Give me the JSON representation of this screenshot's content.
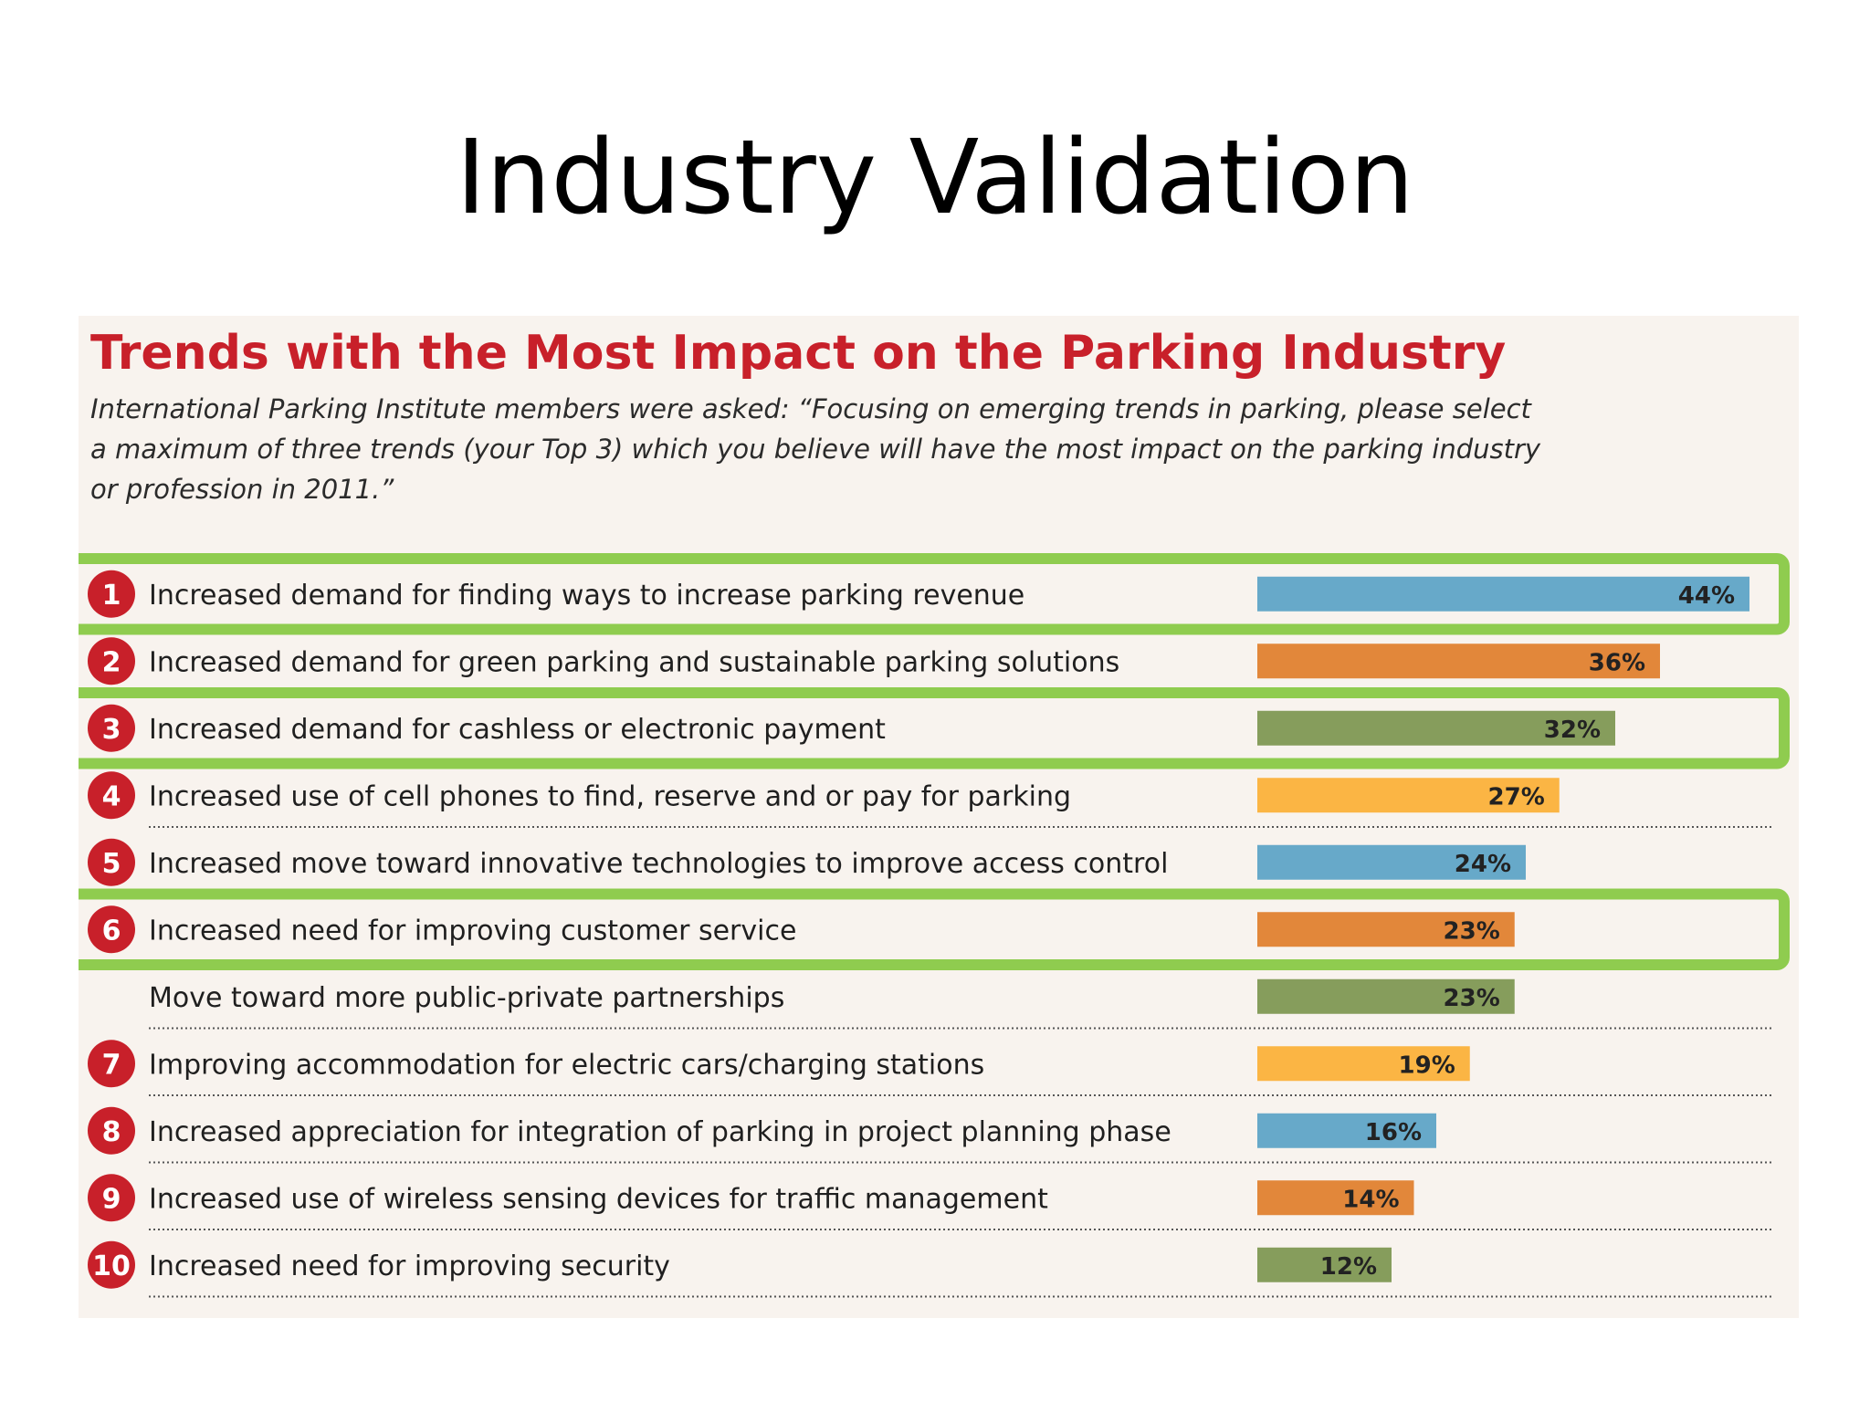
{
  "slide": {
    "title": "Industry Validation"
  },
  "highlight_color": "#8fcc4f",
  "chart_data": {
    "type": "bar",
    "orientation": "horizontal",
    "title": "Trends with the Most Impact on the Parking Industry",
    "subtitle": "International Parking Institute members were asked: “Focusing on emerging trends in parking, please select a maximum of three trends (your Top 3) which you believe will have the most impact on the parking industry or profession in 2011.”",
    "unit": "%",
    "xlim": [
      0,
      50
    ],
    "grid": false,
    "legend": "none",
    "items": [
      {
        "rank": "1",
        "label": "Increased demand for finding ways to increase parking revenue",
        "value": 44,
        "value_label": "44%",
        "color": "#67a9c9",
        "highlighted": true
      },
      {
        "rank": "2",
        "label": "Increased demand for green parking and sustainable parking solutions",
        "value": 36,
        "value_label": "36%",
        "color": "#e2873a",
        "highlighted": false
      },
      {
        "rank": "3",
        "label": "Increased demand for cashless or electronic payment",
        "value": 32,
        "value_label": "32%",
        "color": "#869d5c",
        "highlighted": true
      },
      {
        "rank": "4",
        "label": "Increased use of cell phones to find, reserve and or pay for parking",
        "value": 27,
        "value_label": "27%",
        "color": "#fbb544",
        "highlighted": false
      },
      {
        "rank": "5",
        "label": "Increased move toward innovative technologies to improve access control",
        "value": 24,
        "value_label": "24%",
        "color": "#67a9c9",
        "highlighted": false
      },
      {
        "rank": "6",
        "label": "Increased need for improving customer service",
        "value": 23,
        "value_label": "23%",
        "color": "#e2873a",
        "highlighted": true
      },
      {
        "rank": "",
        "label": "Move toward more public-private partnerships",
        "value": 23,
        "value_label": "23%",
        "color": "#869d5c",
        "highlighted": false
      },
      {
        "rank": "7",
        "label": "Improving accommodation for electric cars/charging stations",
        "value": 19,
        "value_label": "19%",
        "color": "#fbb544",
        "highlighted": false
      },
      {
        "rank": "8",
        "label": "Increased appreciation for integration of parking in project planning phase",
        "value": 16,
        "value_label": "16%",
        "color": "#67a9c9",
        "highlighted": false
      },
      {
        "rank": "9",
        "label": "Increased use of wireless sensing devices for traffic management",
        "value": 14,
        "value_label": "14%",
        "color": "#e2873a",
        "highlighted": false
      },
      {
        "rank": "10",
        "label": "Increased need for improving security",
        "value": 12,
        "value_label": "12%",
        "color": "#869d5c",
        "highlighted": false
      }
    ]
  }
}
